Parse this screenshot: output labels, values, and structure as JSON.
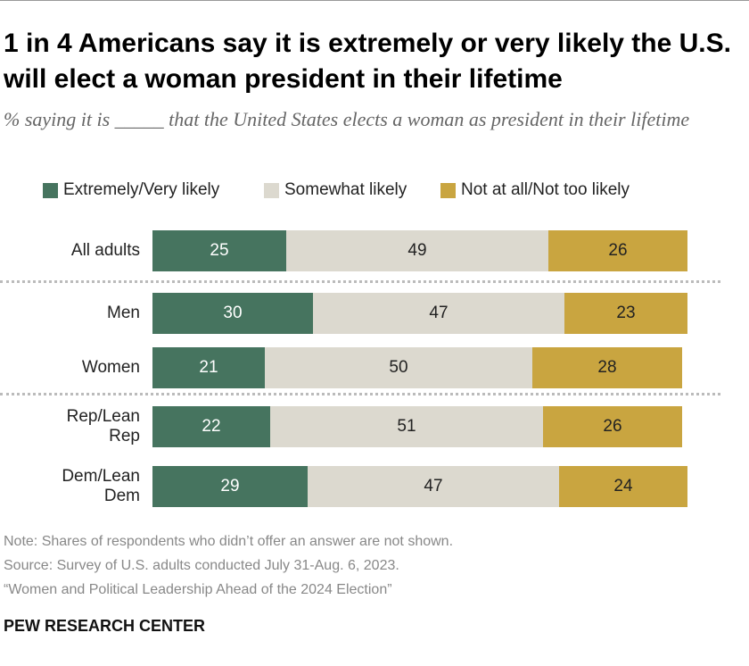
{
  "chart_data": {
    "type": "stacked-bar",
    "title": "1 in 4 Americans say it is extremely or very likely the U.S. will elect a woman president in their lifetime",
    "subtitle": "% saying it is _____ that the United States elects a woman as president in their lifetime",
    "categories": [
      "All adults",
      "Men",
      "Women",
      "Rep/Lean Rep",
      "Dem/Lean Dem"
    ],
    "series": [
      {
        "name": "Extremely/Very likely",
        "color": "#46745f",
        "values": [
          25,
          30,
          21,
          22,
          29
        ]
      },
      {
        "name": "Somewhat likely",
        "color": "#dcd9cf",
        "values": [
          49,
          47,
          50,
          51,
          47
        ]
      },
      {
        "name": "Not at all/Not too likely",
        "color": "#c9a540",
        "values": [
          26,
          23,
          28,
          26,
          24
        ]
      }
    ],
    "notes": [
      "Note: Shares of respondents who didn’t offer an answer are not shown.",
      "Source: Survey of U.S. adults conducted July 31-Aug. 6, 2023.",
      "“Women and Political Leadership Ahead of the 2024 Election”"
    ],
    "source_org": "PEW RESEARCH CENTER"
  }
}
